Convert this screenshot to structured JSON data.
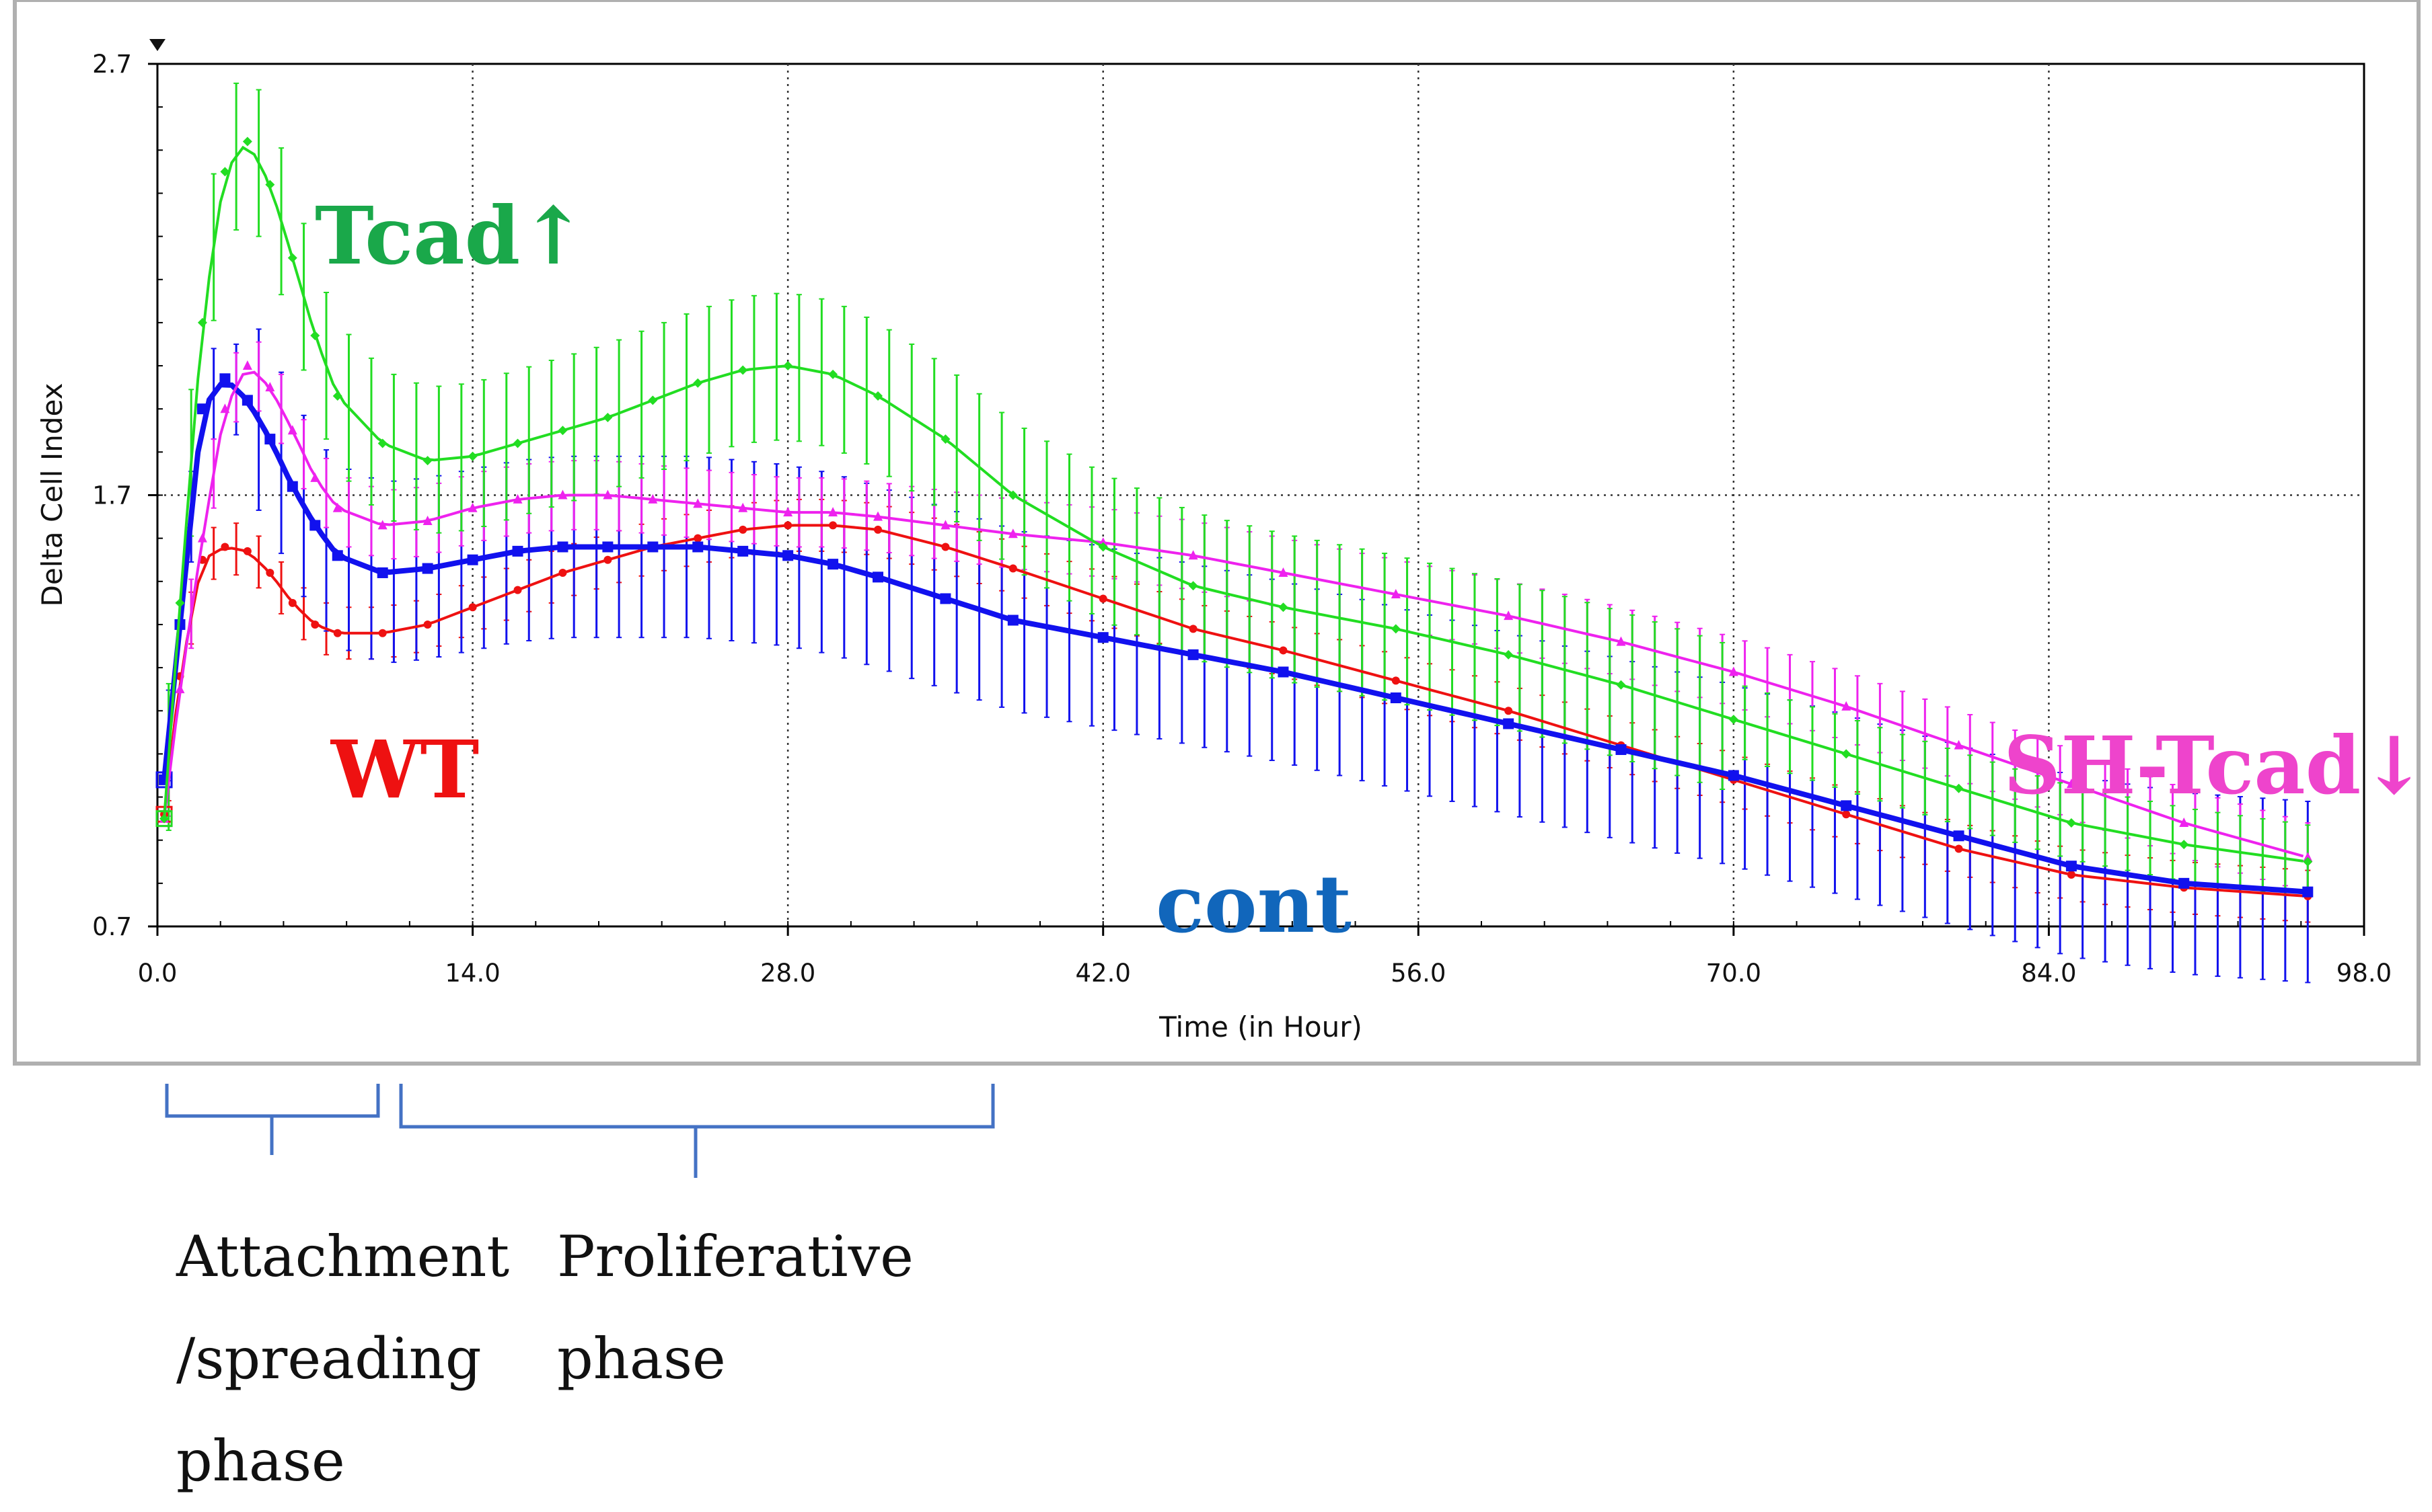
{
  "chart_data": {
    "type": "line",
    "xlabel": "Time (in Hour)",
    "ylabel": "Delta Cell Index",
    "xlim": [
      0,
      98
    ],
    "ylim": [
      0.7,
      2.7
    ],
    "x_ticks": [
      "0.0",
      "14.0",
      "28.0",
      "42.0",
      "56.0",
      "70.0",
      "84.0",
      "98.0"
    ],
    "y_ticks": [
      "0.7",
      "1.7",
      "2.7"
    ],
    "grid": true,
    "series": [
      {
        "name": "Tcad↑",
        "color": "#22dd22",
        "label_color": "#1aa84a",
        "marker": "diamond",
        "x": [
          0.3,
          1,
          2,
          3,
          4,
          5,
          6,
          7,
          8,
          10,
          12,
          14,
          16,
          18,
          20,
          22,
          24,
          26,
          28,
          30,
          32,
          35,
          38,
          42,
          46,
          50,
          55,
          60,
          65,
          70,
          75,
          80,
          85,
          90,
          95.5
        ],
        "y": [
          0.95,
          1.45,
          2.1,
          2.45,
          2.52,
          2.42,
          2.25,
          2.07,
          1.93,
          1.82,
          1.78,
          1.79,
          1.82,
          1.85,
          1.88,
          1.92,
          1.96,
          1.99,
          2.0,
          1.98,
          1.93,
          1.83,
          1.7,
          1.58,
          1.49,
          1.44,
          1.39,
          1.33,
          1.26,
          1.18,
          1.1,
          1.02,
          0.94,
          0.89,
          0.85
        ]
      },
      {
        "name": "SH-Tcad↓",
        "color": "#ee22ee",
        "label_color": "#ee44cc",
        "marker": "triangle",
        "x": [
          0.3,
          1,
          2,
          3,
          4,
          5,
          6,
          7,
          8,
          10,
          12,
          14,
          16,
          18,
          20,
          22,
          24,
          26,
          28,
          30,
          32,
          35,
          38,
          42,
          46,
          50,
          55,
          60,
          65,
          70,
          75,
          80,
          85,
          90,
          95.5
        ],
        "y": [
          0.95,
          1.25,
          1.6,
          1.9,
          2.0,
          1.95,
          1.85,
          1.74,
          1.67,
          1.63,
          1.64,
          1.67,
          1.69,
          1.7,
          1.7,
          1.69,
          1.68,
          1.67,
          1.66,
          1.66,
          1.65,
          1.63,
          1.61,
          1.59,
          1.56,
          1.52,
          1.47,
          1.42,
          1.36,
          1.29,
          1.21,
          1.12,
          1.03,
          0.94,
          0.86
        ]
      },
      {
        "name": "",
        "color": "#1111ee",
        "marker": "square",
        "x": [
          0.3,
          1,
          2,
          3,
          4,
          5,
          6,
          7,
          8,
          10,
          12,
          14,
          16,
          18,
          20,
          22,
          24,
          26,
          28,
          30,
          32,
          35,
          38,
          42,
          46,
          50,
          55,
          60,
          65,
          70,
          75,
          80,
          85,
          90,
          95.5
        ],
        "y": [
          1.04,
          1.4,
          1.9,
          1.97,
          1.92,
          1.83,
          1.72,
          1.63,
          1.56,
          1.52,
          1.53,
          1.55,
          1.57,
          1.58,
          1.58,
          1.58,
          1.58,
          1.57,
          1.56,
          1.54,
          1.51,
          1.46,
          1.41,
          1.37,
          1.33,
          1.29,
          1.23,
          1.17,
          1.11,
          1.05,
          0.98,
          0.91,
          0.84,
          0.8,
          0.78
        ]
      },
      {
        "name": "WT",
        "color": "#ee1111",
        "label_color": "#ee1111",
        "marker": "circle",
        "x": [
          0.3,
          1,
          2,
          3,
          4,
          5,
          6,
          7,
          8,
          10,
          12,
          14,
          16,
          18,
          20,
          22,
          24,
          26,
          28,
          30,
          32,
          35,
          38,
          42,
          46,
          50,
          55,
          60,
          65,
          70,
          75,
          80,
          85,
          90,
          95.5
        ],
        "y": [
          0.96,
          1.28,
          1.55,
          1.58,
          1.57,
          1.52,
          1.45,
          1.4,
          1.38,
          1.38,
          1.4,
          1.44,
          1.48,
          1.52,
          1.55,
          1.58,
          1.6,
          1.62,
          1.63,
          1.63,
          1.62,
          1.58,
          1.53,
          1.46,
          1.39,
          1.34,
          1.27,
          1.2,
          1.12,
          1.04,
          0.96,
          0.88,
          0.82,
          0.79,
          0.77
        ]
      }
    ],
    "annotations": [
      {
        "text": "cont",
        "color": "#1166bb"
      }
    ]
  },
  "phases": [
    {
      "lines": [
        "Attachment",
        "/spreading",
        "phase"
      ],
      "color": "#4472c4"
    },
    {
      "lines": [
        "Proliferative",
        "phase"
      ],
      "color": "#4472c4"
    }
  ]
}
